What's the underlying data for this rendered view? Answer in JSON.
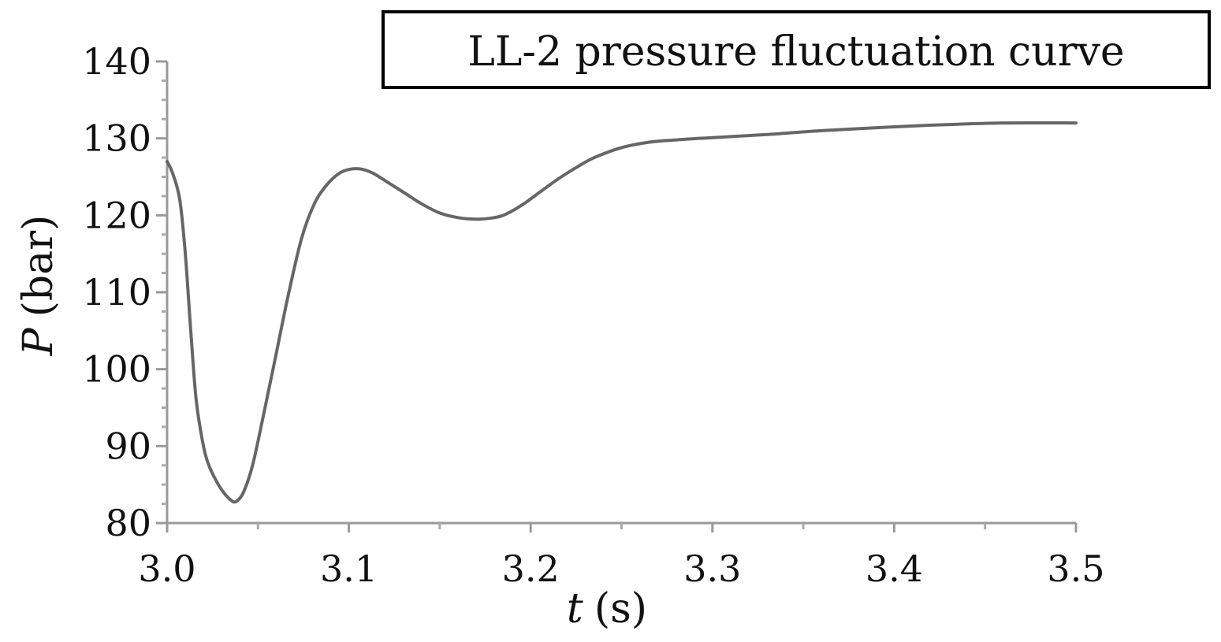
{
  "chart_data": {
    "type": "line",
    "title": "",
    "legend_text": "LL-2 pressure fluctuation curve",
    "legend_position": "top-right",
    "xlabel_var": "t",
    "xlabel_unit": "(s)",
    "ylabel_var": "P",
    "ylabel_unit": "(bar)",
    "xlim": [
      3.0,
      3.5
    ],
    "ylim": [
      80,
      140
    ],
    "x_ticks": [
      "3.0",
      "3.1",
      "3.2",
      "3.3",
      "3.4",
      "3.5"
    ],
    "y_ticks": [
      "80",
      "90",
      "100",
      "110",
      "120",
      "130",
      "140"
    ],
    "grid": false,
    "line_color": "#666666",
    "series": [
      {
        "x": [
          3.0,
          3.003,
          3.007,
          3.01,
          3.013,
          3.016,
          3.02,
          3.023,
          3.027,
          3.031,
          3.035,
          3.038,
          3.042,
          3.047,
          3.053,
          3.06,
          3.067,
          3.074,
          3.081,
          3.088,
          3.095,
          3.101,
          3.107,
          3.113,
          3.12,
          3.13,
          3.14,
          3.15,
          3.16,
          3.17,
          3.177,
          3.185,
          3.195,
          3.205,
          3.215,
          3.225,
          3.235,
          3.25,
          3.265,
          3.28,
          3.3,
          3.33,
          3.36,
          3.4,
          3.43,
          3.46,
          3.5
        ],
        "y": [
          127,
          125.5,
          122,
          115,
          105,
          96,
          90,
          87.5,
          85.5,
          84,
          83,
          82.8,
          84,
          87.5,
          94,
          102,
          110,
          117,
          121.5,
          124,
          125.5,
          126,
          126,
          125.5,
          124.5,
          123,
          121.5,
          120.3,
          119.7,
          119.5,
          119.6,
          120,
          121.3,
          123,
          124.7,
          126.2,
          127.5,
          128.8,
          129.5,
          129.8,
          130.1,
          130.5,
          131,
          131.5,
          131.8,
          132,
          132
        ]
      }
    ]
  }
}
